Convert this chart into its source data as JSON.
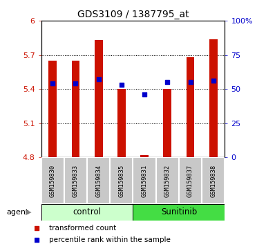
{
  "title": "GDS3109 / 1387795_at",
  "samples": [
    "GSM159830",
    "GSM159833",
    "GSM159834",
    "GSM159835",
    "GSM159831",
    "GSM159832",
    "GSM159837",
    "GSM159838"
  ],
  "groups": [
    "control",
    "control",
    "control",
    "control",
    "Sunitinib",
    "Sunitinib",
    "Sunitinib",
    "Sunitinib"
  ],
  "transformed_counts": [
    5.65,
    5.65,
    5.83,
    5.4,
    4.82,
    5.4,
    5.68,
    5.84
  ],
  "percentile_ranks": [
    54,
    54,
    57,
    53,
    46,
    55,
    55,
    56
  ],
  "y_min": 4.8,
  "y_max": 6.0,
  "y_ticks": [
    4.8,
    5.1,
    5.4,
    5.7,
    6.0
  ],
  "y_tick_labels": [
    "4.8",
    "5.1",
    "5.4",
    "5.7",
    "6"
  ],
  "right_y_ticks": [
    0,
    25,
    50,
    75,
    100
  ],
  "right_y_labels": [
    "0",
    "25",
    "50",
    "75",
    "100%"
  ],
  "bar_color": "#cc1100",
  "dot_color": "#0000cc",
  "control_color": "#ccffcc",
  "sunitinib_color": "#44dd44",
  "sample_bg_color": "#c8c8c8",
  "agent_label": "agent",
  "legend_bar": "transformed count",
  "legend_dot": "percentile rank within the sample",
  "bar_width": 0.35,
  "n_control": 4,
  "n_sunitinib": 4,
  "grid_lines": [
    5.1,
    5.4,
    5.7
  ]
}
